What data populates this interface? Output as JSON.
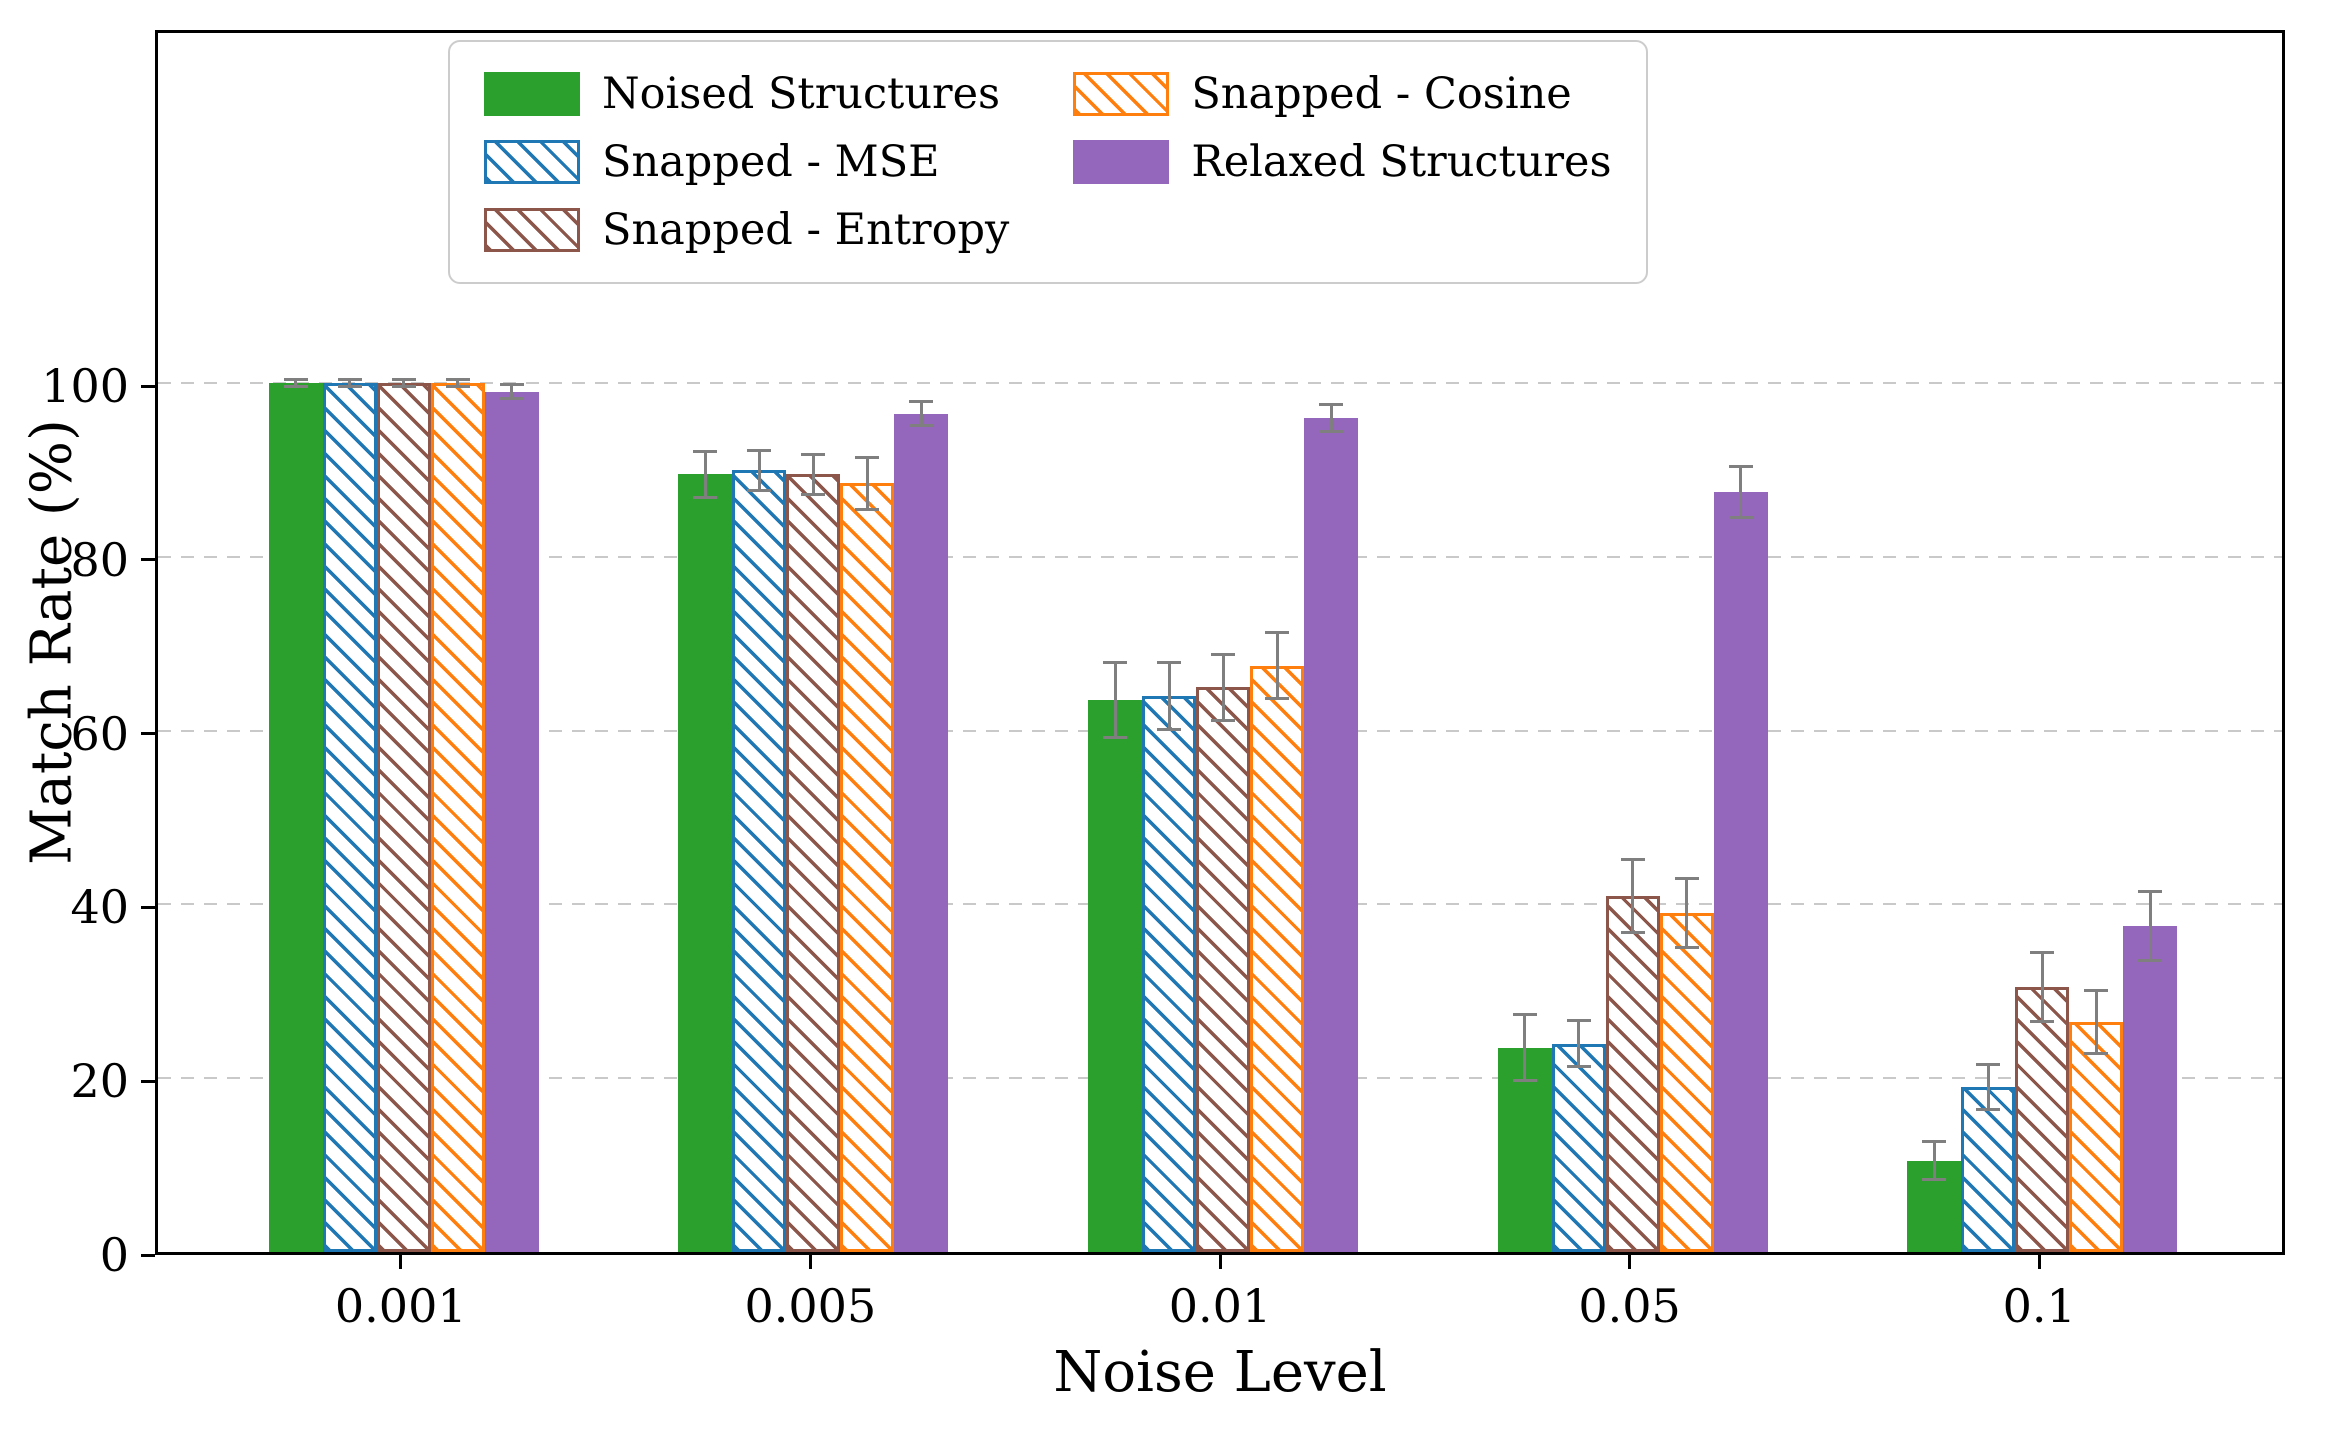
{
  "chart_data": {
    "type": "bar",
    "title": "",
    "xlabel": "Noise Level",
    "ylabel": "Match Rate (%)",
    "categories": [
      "0.001",
      "0.005",
      "0.01",
      "0.05",
      "0.1"
    ],
    "yticks": [
      0,
      20,
      40,
      60,
      80,
      100
    ],
    "ylim": [
      0,
      141
    ],
    "grid": "horizontal-dashed",
    "grid_color": "#c9c9c9",
    "axis_color": "#000000",
    "error_bar_color": "#7f7f7f",
    "legend_position": "upper center inside",
    "legend_columns": [
      [
        0,
        1,
        2
      ],
      [
        3,
        4
      ]
    ],
    "series": [
      {
        "name": "Noised Structures",
        "color": "#2ca02c",
        "hatch": false,
        "values": [
          100,
          89.5,
          63.5,
          23.5,
          10.5
        ],
        "errors": [
          0.4,
          2.6,
          4.3,
          3.8,
          2.2
        ]
      },
      {
        "name": "Snapped - MSE",
        "color": "#1f77b4",
        "hatch": true,
        "values": [
          100,
          90,
          64,
          24,
          19
        ],
        "errors": [
          0.4,
          2.3,
          3.8,
          2.6,
          2.6
        ]
      },
      {
        "name": "Snapped - Entropy",
        "color": "#8c564b",
        "hatch": true,
        "values": [
          100,
          89.5,
          65,
          41,
          30.5
        ],
        "errors": [
          0.4,
          2.3,
          3.8,
          4.2,
          4.0
        ]
      },
      {
        "name": "Snapped - Cosine",
        "color": "#ff7f0e",
        "hatch": true,
        "values": [
          100,
          88.5,
          67.5,
          39,
          26.5
        ],
        "errors": [
          0.4,
          3.0,
          3.8,
          4.0,
          3.6
        ]
      },
      {
        "name": "Relaxed Structures",
        "color": "#9467bd",
        "hatch": false,
        "values": [
          99,
          96.5,
          96,
          87.5,
          37.5
        ],
        "errors": [
          0.8,
          1.4,
          1.6,
          2.9,
          4.0
        ]
      }
    ]
  }
}
